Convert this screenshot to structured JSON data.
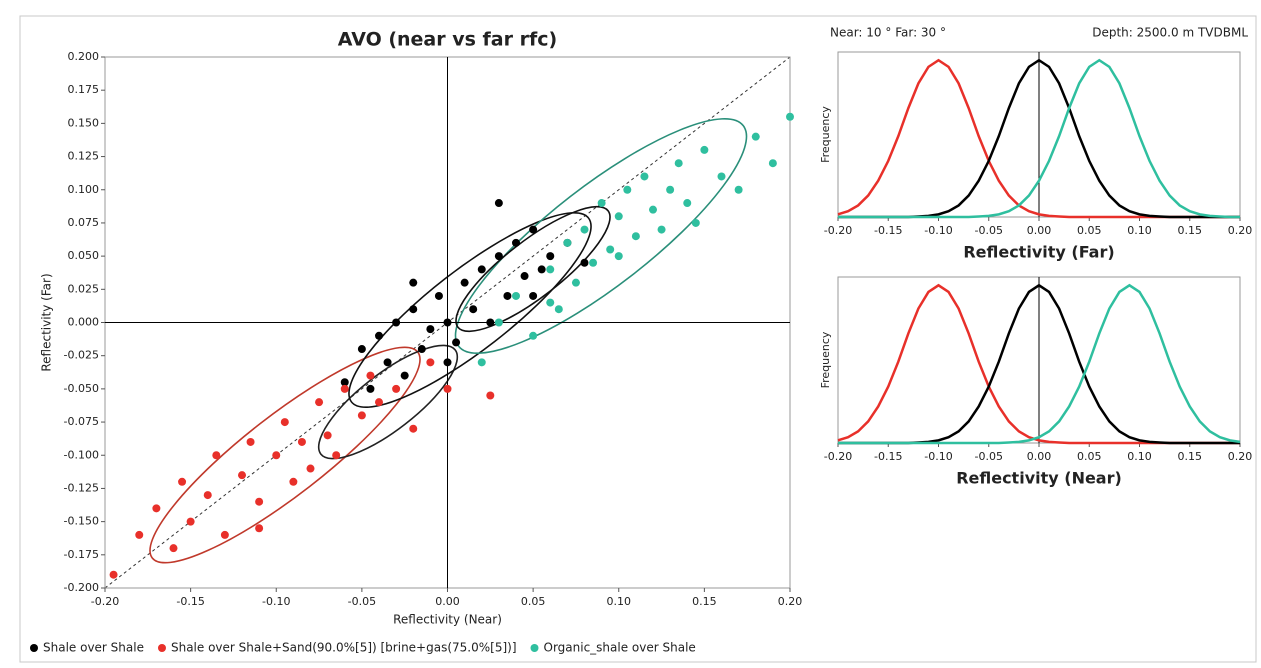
{
  "header": {
    "angles": "Near: 10 °  Far: 30 °",
    "depth": "Depth: 2500.0 m TVDBML"
  },
  "chart_data": [
    {
      "type": "scatter",
      "title": "AVO (near vs far rfc)",
      "x_label": "Reflectivity (Near)",
      "y_label": "Reflectivity (Far)",
      "xlim": [
        -0.2,
        0.2
      ],
      "ylim": [
        -0.2,
        0.2
      ],
      "xticks": [
        {
          "value": -0.2,
          "label": "-0.20"
        },
        {
          "value": -0.15,
          "label": "-0.15"
        },
        {
          "value": -0.1,
          "label": "-0.10"
        },
        {
          "value": -0.05,
          "label": "-0.05"
        },
        {
          "value": 0,
          "label": "0.00"
        },
        {
          "value": 0.05,
          "label": "0.05"
        },
        {
          "value": 0.1,
          "label": "0.10"
        },
        {
          "value": 0.15,
          "label": "0.15"
        },
        {
          "value": 0.2,
          "label": "0.20"
        }
      ],
      "yticks": [
        {
          "value": -0.2,
          "label": "-0.200"
        },
        {
          "value": -0.175,
          "label": "-0.175"
        },
        {
          "value": -0.15,
          "label": "-0.150"
        },
        {
          "value": -0.125,
          "label": "-0.125"
        },
        {
          "value": -0.1,
          "label": "-0.100"
        },
        {
          "value": -0.075,
          "label": "-0.075"
        },
        {
          "value": -0.05,
          "label": "-0.050"
        },
        {
          "value": -0.025,
          "label": "-0.025"
        },
        {
          "value": 0,
          "label": "0.000"
        },
        {
          "value": 0.025,
          "label": "0.025"
        },
        {
          "value": 0.05,
          "label": "0.050"
        },
        {
          "value": 0.075,
          "label": "0.075"
        },
        {
          "value": 0.1,
          "label": "0.100"
        },
        {
          "value": 0.125,
          "label": "0.125"
        },
        {
          "value": 0.15,
          "label": "0.150"
        },
        {
          "value": 0.175,
          "label": "0.175"
        },
        {
          "value": 0.2,
          "label": "0.200"
        }
      ],
      "series": [
        {
          "name": "Shale over Shale",
          "color": "#000000",
          "x": [
            -0.06,
            -0.05,
            -0.045,
            -0.04,
            -0.035,
            -0.03,
            -0.025,
            -0.02,
            -0.015,
            -0.01,
            -0.005,
            0,
            0.005,
            0.01,
            0.015,
            0.02,
            0.025,
            0.03,
            0.035,
            0.04,
            0.045,
            0.05,
            0.055,
            0.06,
            0.07,
            0.08,
            -0.02,
            0,
            0.03,
            0.05
          ],
          "values": [
            -0.045,
            -0.02,
            -0.05,
            -0.01,
            -0.03,
            0,
            -0.04,
            0.01,
            -0.02,
            -0.005,
            0.02,
            0,
            -0.015,
            0.03,
            0.01,
            0.04,
            0,
            0.05,
            0.02,
            0.06,
            0.035,
            0.07,
            0.04,
            0.05,
            0.06,
            0.045,
            0.03,
            -0.03,
            0.09,
            0.02
          ]
        },
        {
          "name": "Shale over Shale+Sand(90.0%[5]) [brine+gas(75.0%[5])]",
          "color": "#e8302a",
          "x": [
            -0.195,
            -0.18,
            -0.17,
            -0.16,
            -0.155,
            -0.15,
            -0.14,
            -0.135,
            -0.13,
            -0.12,
            -0.115,
            -0.11,
            -0.1,
            -0.095,
            -0.09,
            -0.085,
            -0.08,
            -0.075,
            -0.07,
            -0.065,
            -0.06,
            -0.05,
            -0.045,
            -0.04,
            -0.03,
            -0.02,
            -0.01,
            0,
            0.025,
            -0.11
          ],
          "values": [
            -0.19,
            -0.16,
            -0.14,
            -0.17,
            -0.12,
            -0.15,
            -0.13,
            -0.1,
            -0.16,
            -0.115,
            -0.09,
            -0.135,
            -0.1,
            -0.075,
            -0.12,
            -0.09,
            -0.11,
            -0.06,
            -0.085,
            -0.1,
            -0.05,
            -0.07,
            -0.04,
            -0.06,
            -0.05,
            -0.08,
            -0.03,
            -0.05,
            -0.055,
            -0.155
          ]
        },
        {
          "name": "Organic_shale over Shale",
          "color": "#2fbf9f",
          "x": [
            0.02,
            0.03,
            0.04,
            0.05,
            0.06,
            0.065,
            0.07,
            0.075,
            0.08,
            0.085,
            0.09,
            0.095,
            0.1,
            0.105,
            0.11,
            0.115,
            0.12,
            0.125,
            0.13,
            0.135,
            0.14,
            0.145,
            0.15,
            0.16,
            0.17,
            0.18,
            0.19,
            0.2,
            0.06,
            0.1
          ],
          "values": [
            -0.03,
            0,
            0.02,
            -0.01,
            0.04,
            0.01,
            0.06,
            0.03,
            0.07,
            0.045,
            0.09,
            0.055,
            0.08,
            0.1,
            0.065,
            0.11,
            0.085,
            0.07,
            0.1,
            0.12,
            0.09,
            0.075,
            0.13,
            0.11,
            0.1,
            0.14,
            0.12,
            0.155,
            0.015,
            0.05
          ]
        }
      ]
    },
    {
      "type": "line",
      "x_label": "Reflectivity (Far)",
      "y_label": "Frequency",
      "xlim": [
        -0.2,
        0.2
      ],
      "ylim": [
        0,
        1
      ],
      "xticks": [
        {
          "value": -0.2,
          "label": "-0.20"
        },
        {
          "value": -0.15,
          "label": "-0.15"
        },
        {
          "value": -0.1,
          "label": "-0.10"
        },
        {
          "value": -0.05,
          "label": "-0.05"
        },
        {
          "value": 0,
          "label": "0.00"
        },
        {
          "value": 0.05,
          "label": "0.05"
        },
        {
          "value": 0.1,
          "label": "0.10"
        },
        {
          "value": 0.15,
          "label": "0.15"
        },
        {
          "value": 0.2,
          "label": "0.20"
        }
      ],
      "x": [
        -0.2,
        -0.19,
        -0.18,
        -0.17,
        -0.16,
        -0.15,
        -0.14,
        -0.13,
        -0.12,
        -0.11,
        -0.1,
        -0.09,
        -0.08,
        -0.07,
        -0.06,
        -0.05,
        -0.04,
        -0.03,
        -0.02,
        -0.01,
        0,
        0.01,
        0.02,
        0.03,
        0.04,
        0.05,
        0.06,
        0.07,
        0.08,
        0.09,
        0.1,
        0.11,
        0.12,
        0.13,
        0.14,
        0.15,
        0.16,
        0.17,
        0.18,
        0.19,
        0.2
      ],
      "series": [
        {
          "color": "#e8302a",
          "values": [
            0.016,
            0.035,
            0.07,
            0.13,
            0.22,
            0.34,
            0.49,
            0.66,
            0.81,
            0.91,
            0.95,
            0.91,
            0.81,
            0.66,
            0.49,
            0.34,
            0.22,
            0.13,
            0.07,
            0.035,
            0.016,
            0.007,
            0.003,
            0,
            0,
            0,
            0,
            0,
            0,
            0,
            0,
            0,
            0,
            0,
            0,
            0,
            0,
            0,
            0,
            0,
            0
          ]
        },
        {
          "color": "#000000",
          "values": [
            0,
            0,
            0,
            0,
            0,
            0,
            0,
            0,
            0.003,
            0.007,
            0.016,
            0.035,
            0.07,
            0.13,
            0.22,
            0.34,
            0.49,
            0.66,
            0.81,
            0.91,
            0.95,
            0.91,
            0.81,
            0.66,
            0.49,
            0.34,
            0.22,
            0.13,
            0.07,
            0.035,
            0.016,
            0.007,
            0.003,
            0,
            0,
            0,
            0,
            0,
            0,
            0,
            0
          ]
        },
        {
          "color": "#2fbf9f",
          "values": [
            0,
            0,
            0,
            0,
            0,
            0,
            0,
            0,
            0,
            0,
            0,
            0,
            0,
            0,
            0.003,
            0.007,
            0.016,
            0.035,
            0.07,
            0.13,
            0.22,
            0.34,
            0.49,
            0.66,
            0.81,
            0.91,
            0.95,
            0.91,
            0.81,
            0.66,
            0.49,
            0.34,
            0.22,
            0.13,
            0.07,
            0.035,
            0.016,
            0.007,
            0.003,
            0,
            0
          ]
        }
      ]
    },
    {
      "type": "line",
      "x_label": "Reflectivity (Near)",
      "y_label": "Frequency",
      "xlim": [
        -0.2,
        0.2
      ],
      "ylim": [
        0,
        1
      ],
      "xticks": [
        {
          "value": -0.2,
          "label": "-0.20"
        },
        {
          "value": -0.15,
          "label": "-0.15"
        },
        {
          "value": -0.1,
          "label": "-0.10"
        },
        {
          "value": -0.05,
          "label": "-0.05"
        },
        {
          "value": 0,
          "label": "0.00"
        },
        {
          "value": 0.05,
          "label": "0.05"
        },
        {
          "value": 0.1,
          "label": "0.10"
        },
        {
          "value": 0.15,
          "label": "0.15"
        },
        {
          "value": 0.2,
          "label": "0.20"
        }
      ],
      "x": [
        -0.2,
        -0.19,
        -0.18,
        -0.17,
        -0.16,
        -0.15,
        -0.14,
        -0.13,
        -0.12,
        -0.11,
        -0.1,
        -0.09,
        -0.08,
        -0.07,
        -0.06,
        -0.05,
        -0.04,
        -0.03,
        -0.02,
        -0.01,
        0,
        0.01,
        0.02,
        0.03,
        0.04,
        0.05,
        0.06,
        0.07,
        0.08,
        0.09,
        0.1,
        0.11,
        0.12,
        0.13,
        0.14,
        0.15,
        0.16,
        0.17,
        0.18,
        0.19,
        0.2
      ],
      "series": [
        {
          "color": "#e8302a",
          "values": [
            0.016,
            0.035,
            0.07,
            0.13,
            0.22,
            0.34,
            0.49,
            0.66,
            0.81,
            0.91,
            0.95,
            0.91,
            0.81,
            0.66,
            0.49,
            0.34,
            0.22,
            0.13,
            0.07,
            0.035,
            0.016,
            0.007,
            0.003,
            0,
            0,
            0,
            0,
            0,
            0,
            0,
            0,
            0,
            0,
            0,
            0,
            0,
            0,
            0,
            0,
            0,
            0
          ]
        },
        {
          "color": "#000000",
          "values": [
            0,
            0,
            0,
            0,
            0,
            0,
            0,
            0,
            0.003,
            0.007,
            0.016,
            0.035,
            0.07,
            0.13,
            0.22,
            0.34,
            0.49,
            0.66,
            0.81,
            0.91,
            0.95,
            0.91,
            0.81,
            0.66,
            0.49,
            0.34,
            0.22,
            0.13,
            0.07,
            0.035,
            0.016,
            0.007,
            0.003,
            0,
            0,
            0,
            0,
            0,
            0,
            0,
            0
          ]
        },
        {
          "color": "#2fbf9f",
          "values": [
            0,
            0,
            0,
            0,
            0,
            0,
            0,
            0,
            0,
            0,
            0,
            0,
            0,
            0,
            0,
            0,
            0,
            0.003,
            0.007,
            0.016,
            0.035,
            0.07,
            0.13,
            0.22,
            0.34,
            0.49,
            0.66,
            0.81,
            0.91,
            0.95,
            0.91,
            0.81,
            0.66,
            0.49,
            0.34,
            0.22,
            0.13,
            0.07,
            0.035,
            0.016,
            0.007
          ]
        }
      ]
    }
  ]
}
